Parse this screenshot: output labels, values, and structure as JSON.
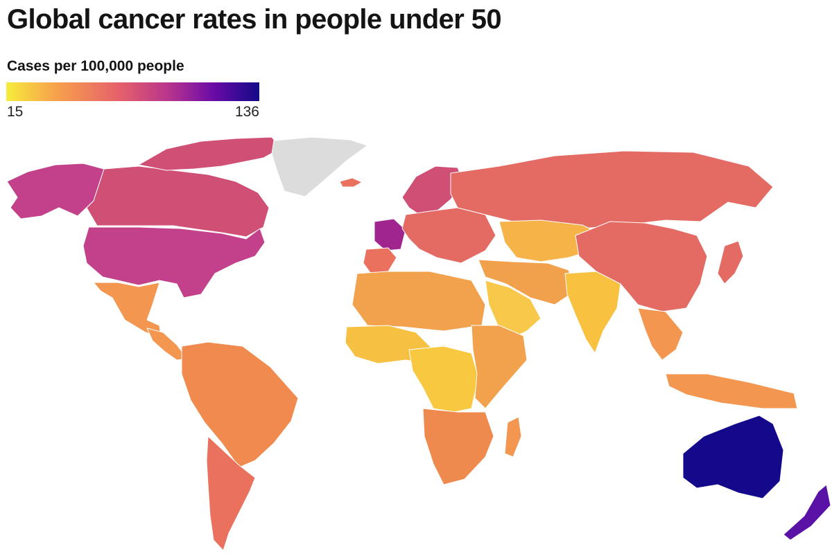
{
  "title": "Global cancer rates in people under 50",
  "legend": {
    "title": "Cases per 100,000 people",
    "min": "15",
    "max": "136",
    "gradient": [
      "#f7ec3c",
      "#f6a04d",
      "#e5606a",
      "#b5338f",
      "#6a0ba6",
      "#120a87"
    ]
  },
  "map": {
    "type": "choropleth",
    "no_data_color": "#dcdcdc",
    "regions": [
      {
        "name": "Alaska",
        "color": "#c2418a"
      },
      {
        "name": "Canada",
        "color": "#d04f75"
      },
      {
        "name": "Canadian Arctic Islands",
        "color": "#d04f75"
      },
      {
        "name": "Greenland",
        "color": "#dcdcdc"
      },
      {
        "name": "United States",
        "color": "#c2418a"
      },
      {
        "name": "Mexico",
        "color": "#f39650"
      },
      {
        "name": "Central America",
        "color": "#f39650"
      },
      {
        "name": "South America",
        "color": "#f08a4e"
      },
      {
        "name": "Argentina & Chile",
        "color": "#e9715e"
      },
      {
        "name": "Iceland",
        "color": "#e9715e"
      },
      {
        "name": "Scandinavia",
        "color": "#d04f75"
      },
      {
        "name": "France",
        "color": "#a0258f"
      },
      {
        "name": "Iberia",
        "color": "#e9715e"
      },
      {
        "name": "Europe",
        "color": "#e46a64"
      },
      {
        "name": "Russia",
        "color": "#e46a64"
      },
      {
        "name": "Central Asia",
        "color": "#f6b448"
      },
      {
        "name": "Middle East",
        "color": "#f1a04c"
      },
      {
        "name": "Arabian Peninsula",
        "color": "#f8c84a"
      },
      {
        "name": "India",
        "color": "#f8c240"
      },
      {
        "name": "China",
        "color": "#e46a64"
      },
      {
        "name": "Japan",
        "color": "#e46a64"
      },
      {
        "name": "Southeast Asia",
        "color": "#f39650"
      },
      {
        "name": "Indonesia",
        "color": "#f39650"
      },
      {
        "name": "North Africa",
        "color": "#f2a24c"
      },
      {
        "name": "West Africa",
        "color": "#f6c043"
      },
      {
        "name": "Central Africa",
        "color": "#f8c840"
      },
      {
        "name": "East Africa",
        "color": "#f2a24c"
      },
      {
        "name": "Southern Africa",
        "color": "#ef8a4e"
      },
      {
        "name": "Madagascar",
        "color": "#f39650"
      },
      {
        "name": "Australia",
        "color": "#13098a"
      },
      {
        "name": "New Zealand",
        "color": "#5a12a6"
      }
    ]
  }
}
